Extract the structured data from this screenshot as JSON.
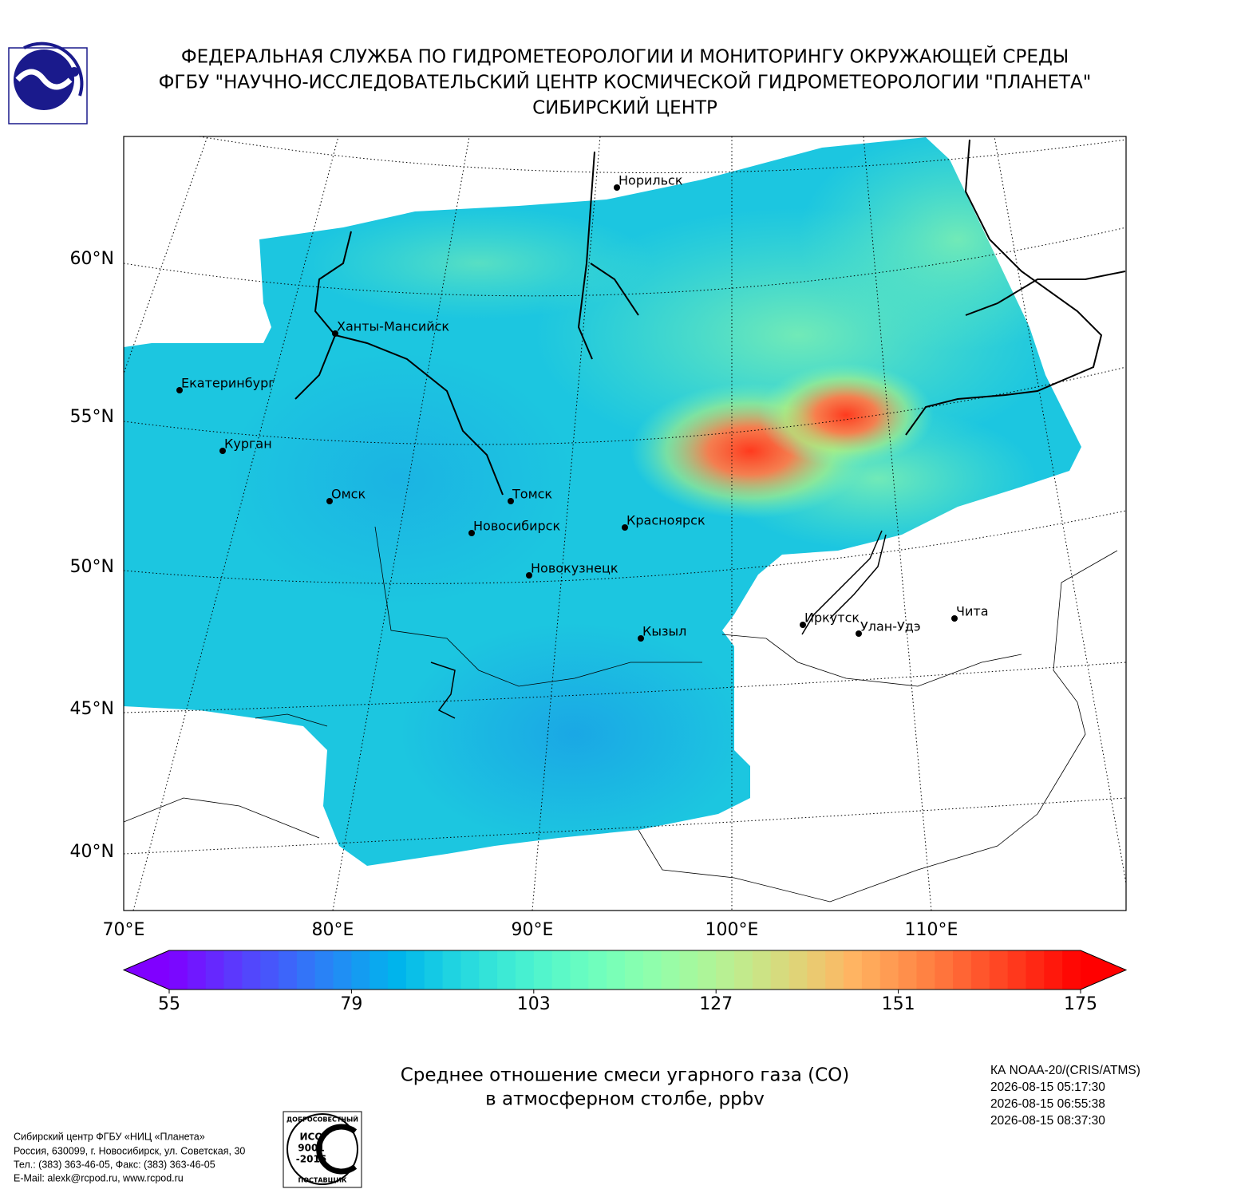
{
  "header": {
    "lines": [
      "ФЕДЕРАЛЬНАЯ СЛУЖБА ПО ГИДРОМЕТЕОРОЛОГИИ И МОНИТОРИНГУ ОКРУЖАЮЩЕЙ СРЕДЫ",
      "ФГБУ \"НАУЧНО-ИССЛЕДОВАТЕЛЬСКИЙ ЦЕНТР КОСМИЧЕСКОЙ ГИДРОМЕТЕОРОЛОГИИ \"ПЛАНЕТА\"",
      "СИБИРСКИЙ ЦЕНТР"
    ]
  },
  "map": {
    "lat_labels": [
      "60°N",
      "55°N",
      "50°N",
      "45°N",
      "40°N"
    ],
    "lon_labels": [
      "70°E",
      "80°E",
      "90°E",
      "100°E",
      "110°E"
    ],
    "cities": [
      "Норильск",
      "Ханты-Мансийск",
      "Екатеринбург",
      "Курган",
      "Омск",
      "Томск",
      "Новосибирск",
      "Красноярск",
      "Новокузнецк",
      "Кызыл",
      "Иркутск",
      "Улан-Удэ",
      "Чита"
    ]
  },
  "colorbar": {
    "lim": [
      55,
      175
    ],
    "ticks": [
      55,
      79,
      103,
      127,
      151,
      175
    ]
  },
  "caption": {
    "lines": [
      "Среднее отношение смеси угарного газа (CO)",
      "в атмосферном столбе, ppbv"
    ]
  },
  "satellite": {
    "lines": [
      "КА NOAA-20/(CRIS/ATMS)",
      "2026-08-15 05:17:30",
      "2026-08-15 06:55:38",
      "2026-08-15 08:37:30"
    ]
  },
  "footer": {
    "lines": [
      "Сибирский центр ФГБУ «НИЦ «Планета»",
      "Россия, 630099, г. Новосибирск, ул. Советская, 30",
      "Тел.: (383) 363-46-05, Факс: (383) 363-46-05",
      "E-Mail: alexk@rcpod.ru, www.rcpod.ru"
    ]
  },
  "iso_logo": {
    "top": "ДОБРОСОВЕСТНЫЙ",
    "lines": [
      "ИСО",
      "9001",
      "-2015"
    ],
    "bottom": "ПОСТАВЩИК"
  }
}
